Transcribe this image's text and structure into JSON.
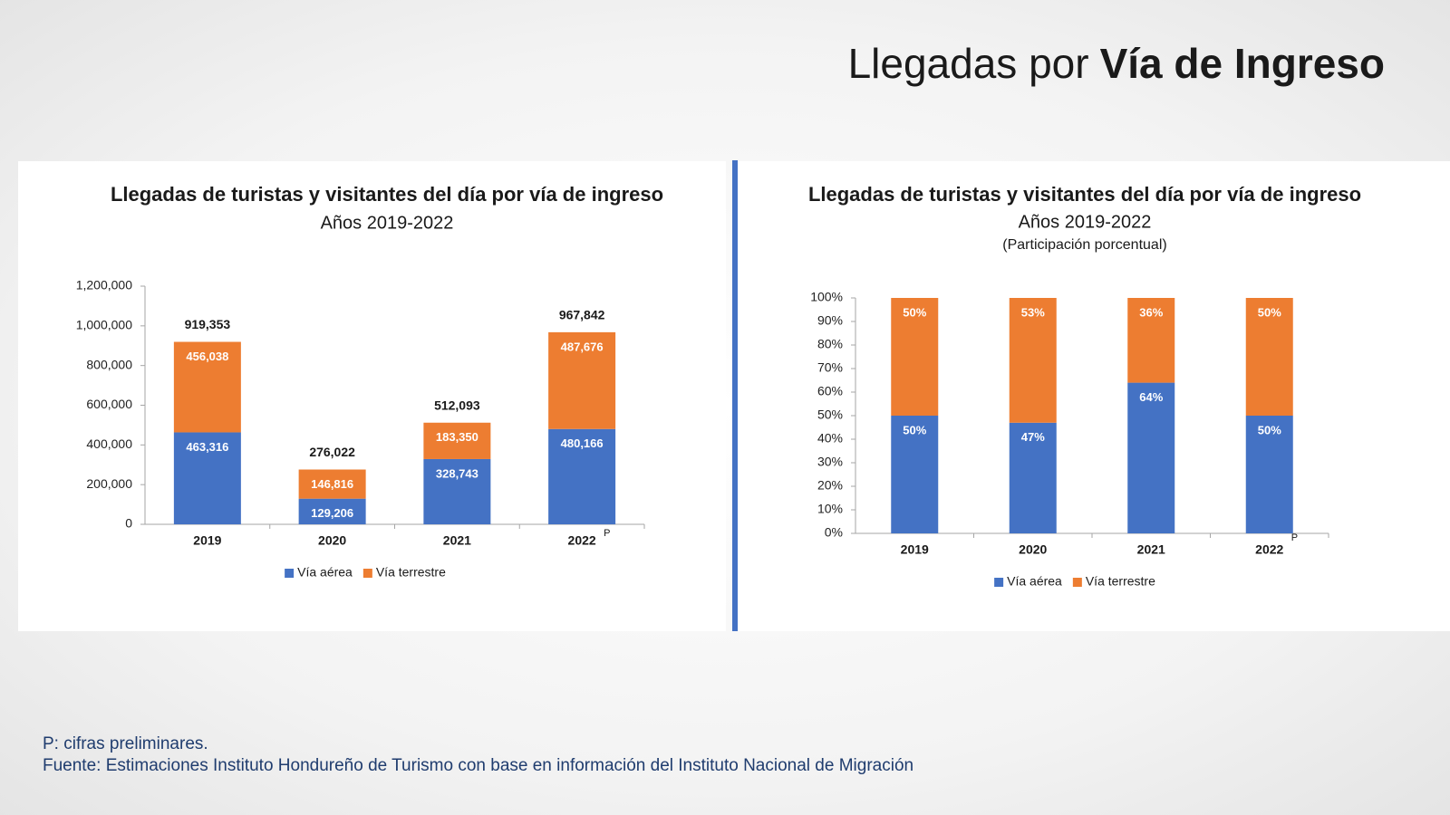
{
  "page": {
    "title_regular": "Llegadas por",
    "title_bold": "Vía de Ingreso"
  },
  "notes": [
    "P: cifras preliminares.",
    "Fuente: Estimaciones Instituto Hondureño de Turismo con base en información del Instituto Nacional de Migración"
  ],
  "chart_data": [
    {
      "type": "stacked_bar",
      "title": "Llegadas de turistas y visitantes del día por vía de ingreso",
      "subtitle": "Años 2019-2022",
      "categories": [
        "2019",
        "2020",
        "2021",
        "2022"
      ],
      "category_superscripts": [
        null,
        null,
        null,
        "P"
      ],
      "series": [
        {
          "name": "Vía aérea",
          "color": "#4472c4",
          "values": [
            463316,
            129206,
            328743,
            480166
          ],
          "value_labels": [
            "463,316",
            "129,206",
            "328,743",
            "480,166"
          ]
        },
        {
          "name": "Vía terrestre",
          "color": "#ed7d31",
          "values": [
            456038,
            146816,
            183350,
            487676
          ],
          "value_labels": [
            "456,038",
            "146,816",
            "183,350",
            "487,676"
          ]
        }
      ],
      "totals": [
        919353,
        276022,
        512093,
        967842
      ],
      "total_labels": [
        "919,353",
        "276,022",
        "512,093",
        "967,842"
      ],
      "ylim": [
        0,
        1200000
      ],
      "yticks": [
        0,
        {
          "value": 200000,
          "label": "200,000"
        },
        {
          "value": 400000,
          "label": "400,000"
        },
        {
          "value": 600000,
          "label": "600,000"
        },
        {
          "value": 800000,
          "label": "800,000"
        },
        {
          "value": 1000000,
          "label": "1,000,000"
        },
        {
          "value": 1200000,
          "label": "1,200,000"
        }
      ],
      "grid": false,
      "legend": "bottom"
    },
    {
      "type": "stacked_bar",
      "title": "Llegadas de turistas y visitantes del día por vía de ingreso",
      "subtitle": "Años 2019-2022",
      "caption": "(Participación porcentual)",
      "categories": [
        "2019",
        "2020",
        "2021",
        "2022"
      ],
      "category_superscripts": [
        null,
        null,
        null,
        "P"
      ],
      "series": [
        {
          "name": "Vía aérea",
          "color": "#4472c4",
          "values": [
            50,
            47,
            64,
            50
          ],
          "value_labels": [
            "50%",
            "47%",
            "64%",
            "50%"
          ]
        },
        {
          "name": "Vía terrestre",
          "color": "#ed7d31",
          "values": [
            50,
            53,
            36,
            50
          ],
          "value_labels": [
            "50%",
            "53%",
            "36%",
            "50%"
          ]
        }
      ],
      "ylim": [
        0,
        100
      ],
      "yticks": [
        {
          "value": 0,
          "label": "0%"
        },
        {
          "value": 10,
          "label": "10%"
        },
        {
          "value": 20,
          "label": "20%"
        },
        {
          "value": 30,
          "label": "30%"
        },
        {
          "value": 40,
          "label": "40%"
        },
        {
          "value": 50,
          "label": "50%"
        },
        {
          "value": 60,
          "label": "60%"
        },
        {
          "value": 70,
          "label": "70%"
        },
        {
          "value": 80,
          "label": "80%"
        },
        {
          "value": 90,
          "label": "90%"
        },
        {
          "value": 100,
          "label": "100%"
        }
      ],
      "grid": false,
      "legend": "bottom"
    }
  ]
}
